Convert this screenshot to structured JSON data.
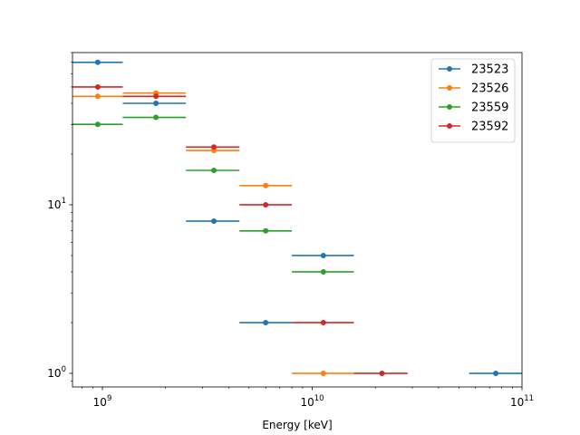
{
  "chart_data": {
    "type": "scatter",
    "xlabel": "Energy [keV]",
    "ylabel": "",
    "xscale": "log",
    "yscale": "log",
    "xlim": [
      720000000.0,
      100000000000.0
    ],
    "ylim": [
      0.83,
      80
    ],
    "grid": false,
    "legend_position": "top-right",
    "x_ticks": [
      {
        "value": 1000000000.0,
        "base": "10",
        "exp": "9"
      },
      {
        "value": 10000000000.0,
        "base": "10",
        "exp": "10"
      },
      {
        "value": 100000000000.0,
        "base": "10",
        "exp": "11"
      }
    ],
    "y_ticks": [
      {
        "value": 1,
        "base": "10",
        "exp": "0"
      },
      {
        "value": 10,
        "base": "10",
        "exp": "1"
      }
    ],
    "series": [
      {
        "name": "23523",
        "color": "#1f77b4",
        "points": [
          {
            "x": 950000000.0,
            "xlo": 720000000.0,
            "xhi": 1250000000.0,
            "y": 70
          },
          {
            "x": 1800000000.0,
            "xlo": 1250000000.0,
            "xhi": 2500000000.0,
            "y": 40
          },
          {
            "x": 3400000000.0,
            "xlo": 2500000000.0,
            "xhi": 4500000000.0,
            "y": 8
          },
          {
            "x": 6000000000.0,
            "xlo": 4500000000.0,
            "xhi": 8000000000.0,
            "y": 2
          },
          {
            "x": 11300000000.0,
            "xlo": 8000000000.0,
            "xhi": 15800000000.0,
            "y": 5
          },
          {
            "x": 75000000000.0,
            "xlo": 56000000000.0,
            "xhi": 100000000000.0,
            "y": 1
          }
        ]
      },
      {
        "name": "23526",
        "color": "#ff7f0e",
        "points": [
          {
            "x": 950000000.0,
            "xlo": 720000000.0,
            "xhi": 1250000000.0,
            "y": 44
          },
          {
            "x": 1800000000.0,
            "xlo": 1250000000.0,
            "xhi": 2500000000.0,
            "y": 46
          },
          {
            "x": 3400000000.0,
            "xlo": 2500000000.0,
            "xhi": 4500000000.0,
            "y": 21
          },
          {
            "x": 6000000000.0,
            "xlo": 4500000000.0,
            "xhi": 8000000000.0,
            "y": 13
          },
          {
            "x": 11300000000.0,
            "xlo": 8000000000.0,
            "xhi": 15800000000.0,
            "y": 1
          }
        ]
      },
      {
        "name": "23559",
        "color": "#2ca02c",
        "points": [
          {
            "x": 950000000.0,
            "xlo": 720000000.0,
            "xhi": 1250000000.0,
            "y": 30
          },
          {
            "x": 1800000000.0,
            "xlo": 1250000000.0,
            "xhi": 2500000000.0,
            "y": 33
          },
          {
            "x": 3400000000.0,
            "xlo": 2500000000.0,
            "xhi": 4500000000.0,
            "y": 16
          },
          {
            "x": 6000000000.0,
            "xlo": 4500000000.0,
            "xhi": 8000000000.0,
            "y": 7
          },
          {
            "x": 11300000000.0,
            "xlo": 8000000000.0,
            "xhi": 15800000000.0,
            "y": 4
          }
        ]
      },
      {
        "name": "23592",
        "color": "#d62728",
        "points": [
          {
            "x": 950000000.0,
            "xlo": 720000000.0,
            "xhi": 1250000000.0,
            "y": 50
          },
          {
            "x": 1800000000.0,
            "xlo": 1250000000.0,
            "xhi": 2500000000.0,
            "y": 44
          },
          {
            "x": 3400000000.0,
            "xlo": 2500000000.0,
            "xhi": 4500000000.0,
            "y": 22
          },
          {
            "x": 6000000000.0,
            "xlo": 4500000000.0,
            "xhi": 8000000000.0,
            "y": 10
          },
          {
            "x": 11300000000.0,
            "xlo": 8000000000.0,
            "xhi": 15800000000.0,
            "y": 2
          },
          {
            "x": 21500000000.0,
            "xlo": 15800000000.0,
            "xhi": 28500000000.0,
            "y": 1
          }
        ]
      }
    ]
  }
}
